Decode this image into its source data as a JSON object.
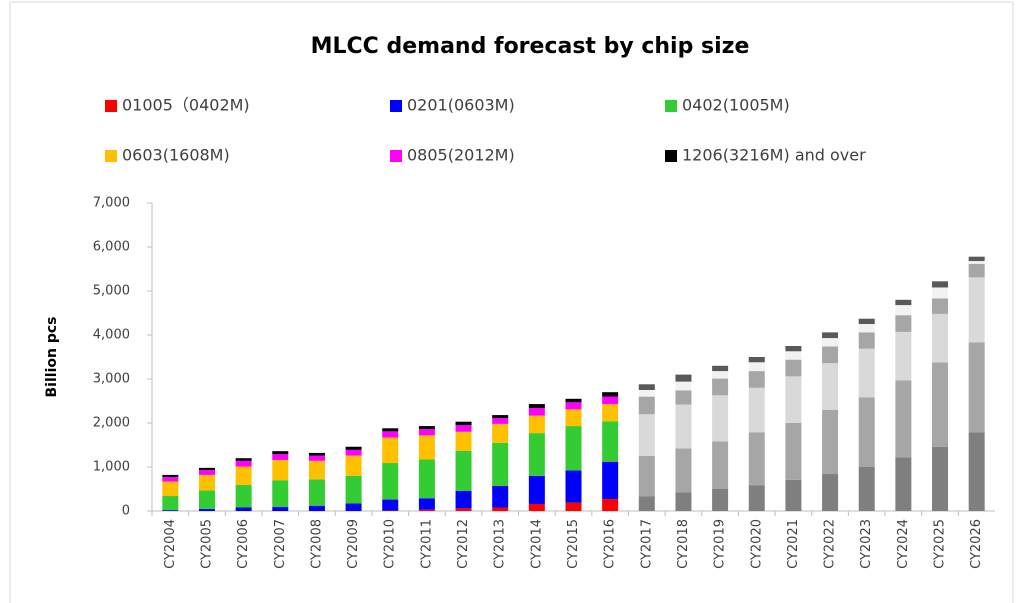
{
  "chart_data": {
    "type": "stacked_bar",
    "title": "MLCC demand forecast by chip size",
    "y_label": "Billion pcs",
    "categories": [
      "CY2004",
      "CY2005",
      "CY2006",
      "CY2007",
      "CY2008",
      "CY2009",
      "CY2010",
      "CY2011",
      "CY2012",
      "CY2013",
      "CY2014",
      "CY2015",
      "CY2016",
      "CY2017",
      "CY2018",
      "CY2019",
      "CY2020",
      "CY2021",
      "CY2022",
      "CY2023",
      "CY2024",
      "CY2025",
      "CY2026"
    ],
    "forecast_from": "CY2017",
    "series": [
      {
        "name": "01005（0402M)",
        "color": "#ff0000",
        "forecast_color": "#7f7f7f",
        "values": [
          0,
          0,
          0,
          0,
          0,
          0,
          10,
          30,
          60,
          80,
          160,
          190,
          270,
          330,
          420,
          500,
          580,
          710,
          840,
          1000,
          1220,
          1460,
          1790
        ]
      },
      {
        "name": "0201(0603M)",
        "color": "#0000ff",
        "forecast_color": "#a6a6a6",
        "values": [
          20,
          50,
          80,
          90,
          120,
          170,
          250,
          260,
          400,
          490,
          640,
          730,
          850,
          920,
          1000,
          1080,
          1210,
          1290,
          1460,
          1580,
          1750,
          1920,
          2040
        ]
      },
      {
        "name": "0402(1005M)",
        "color": "#33cc33",
        "forecast_color": "#d9d9d9",
        "values": [
          320,
          420,
          510,
          610,
          600,
          630,
          830,
          880,
          910,
          980,
          970,
          1010,
          920,
          950,
          1000,
          1050,
          1010,
          1060,
          1060,
          1110,
          1100,
          1100,
          1480
        ]
      },
      {
        "name": "0603(1608M)",
        "color": "#ffc000",
        "forecast_color": "#a6a6a6",
        "values": [
          330,
          350,
          420,
          460,
          420,
          460,
          580,
          550,
          430,
          430,
          400,
          380,
          390,
          400,
          320,
          380,
          380,
          380,
          380,
          370,
          380,
          350,
          310
        ]
      },
      {
        "name": "0805(2012M)",
        "color": "#ff00ff",
        "forecast_color": "#f2f2f2",
        "values": [
          100,
          110,
          130,
          130,
          120,
          130,
          140,
          140,
          150,
          130,
          170,
          160,
          170,
          150,
          200,
          170,
          200,
          190,
          190,
          190,
          230,
          250,
          60
        ]
      },
      {
        "name": "1206(3216M) and over",
        "color": "#000000",
        "forecast_color": "#595959",
        "values": [
          50,
          50,
          60,
          70,
          60,
          70,
          70,
          70,
          80,
          70,
          90,
          80,
          100,
          130,
          160,
          120,
          120,
          120,
          130,
          120,
          120,
          140,
          100
        ]
      }
    ],
    "ylim": [
      0,
      7000
    ],
    "yticks": [
      0,
      {
        "value": 1000,
        "label": "1,000"
      },
      {
        "value": 2000,
        "label": "2,000"
      },
      {
        "value": 3000,
        "label": "3,000"
      },
      {
        "value": 4000,
        "label": "4,000"
      },
      {
        "value": 5000,
        "label": "5,000"
      },
      {
        "value": 6000,
        "label": "6,000"
      },
      {
        "value": 7000,
        "label": "7,000"
      }
    ]
  }
}
